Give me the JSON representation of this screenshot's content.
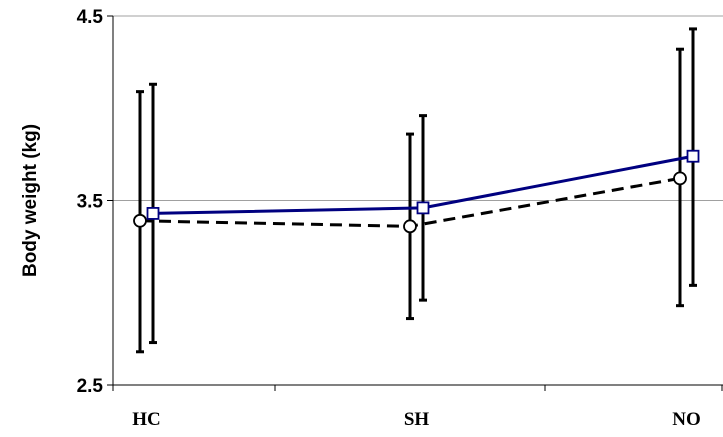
{
  "chart_data": {
    "type": "line",
    "title": "",
    "xlabel": "",
    "ylabel": "Body weight (kg)",
    "categories": [
      "HC",
      "SH",
      "NO"
    ],
    "ylim": [
      2.5,
      4.5
    ],
    "yticks": [
      "2.5",
      "3.5",
      "4.5"
    ],
    "grid": "horizontal major gridlines at 3.5 and 4.5",
    "legend": "none",
    "series": [
      {
        "marker": "circle",
        "line_style": "dashed",
        "color": "#000000",
        "values": [
          3.39,
          3.36,
          3.62
        ],
        "error_low": [
          2.68,
          2.86,
          2.93
        ],
        "error_high": [
          4.09,
          3.86,
          4.32
        ]
      },
      {
        "marker": "square",
        "line_style": "solid",
        "color": "#000080",
        "values": [
          3.43,
          3.46,
          3.74
        ],
        "error_low": [
          2.73,
          2.96,
          3.04
        ],
        "error_high": [
          4.13,
          3.96,
          4.43
        ]
      }
    ]
  }
}
